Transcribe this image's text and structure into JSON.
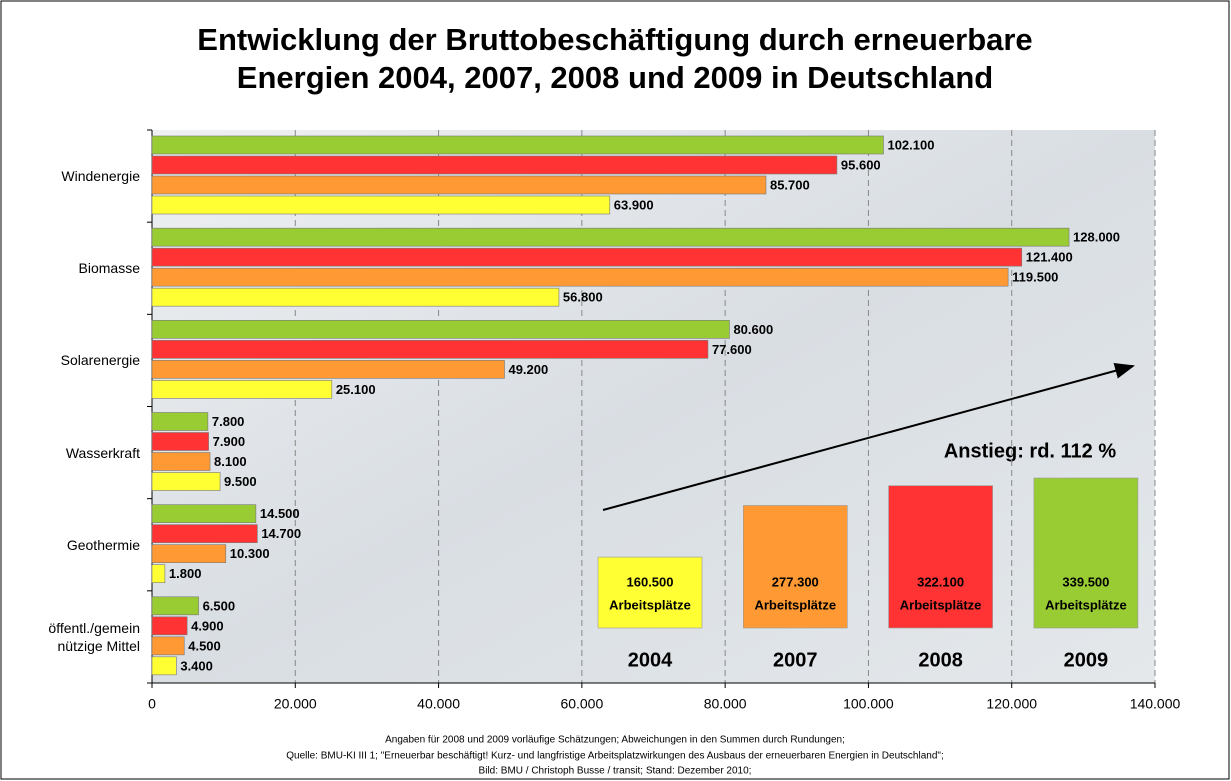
{
  "chart_data": {
    "type": "hbar",
    "title": [
      "Entwicklung der Bruttobeschäftigung durch erneuerbare",
      "Energien 2004, 2007, 2008 und 2009 in Deutschland"
    ],
    "categories": [
      "Windenergie",
      "Biomasse",
      "Solarenergie",
      "Wasserkraft",
      "Geothermie",
      "öffentl./gemein nützige Mittel"
    ],
    "series": [
      {
        "name": "2004",
        "color": "#ffff33",
        "values": [
          63900,
          56800,
          25100,
          9500,
          1800,
          3400
        ],
        "value_labels": [
          "63.900",
          "56.800",
          "25.100",
          "9.500",
          "1.800",
          "3.400"
        ]
      },
      {
        "name": "2007",
        "color": "#ff9933",
        "values": [
          85700,
          119500,
          49200,
          8100,
          10300,
          4500
        ],
        "value_labels": [
          "85.700",
          "119.500",
          "49.200",
          "8.100",
          "10.300",
          "4.500"
        ]
      },
      {
        "name": "2008",
        "color": "#ff3333",
        "values": [
          95600,
          121400,
          77600,
          7900,
          14700,
          4900
        ],
        "value_labels": [
          "95.600",
          "121.400",
          "77.600",
          "7.900",
          "14.700",
          "4.900"
        ]
      },
      {
        "name": "2009",
        "color": "#99cc33",
        "values": [
          102100,
          128000,
          80600,
          7800,
          14500,
          6500
        ],
        "value_labels": [
          "102.100",
          "128.000",
          "80.600",
          "7.800",
          "14.500",
          "6.500"
        ]
      }
    ],
    "xlim": [
      0,
      140000
    ],
    "xticks": [
      0,
      {
        "value": 20000,
        "label": "20.000"
      },
      {
        "value": 40000,
        "label": "40.000"
      },
      {
        "value": 60000,
        "label": "60.000"
      },
      {
        "value": 80000,
        "label": "80.000"
      },
      {
        "value": 100000,
        "label": "100.000"
      },
      {
        "value": 120000,
        "label": "120.000"
      },
      {
        "value": 140000,
        "label": "140.000"
      }
    ],
    "grid": true,
    "totals": {
      "label": "Arbeitsplätze",
      "values": [
        160500,
        277300,
        322100,
        339500
      ],
      "value_labels": [
        "160.500",
        "277.300",
        "322.100",
        "339.500"
      ]
    },
    "annotation": "Anstieg: rd. 112 %",
    "notes": [
      "Angaben für 2008 und 2009 vorläufige Schätzungen; Abweichungen in den Summen durch Rundungen;",
      "Quelle: BMU-KI III 1; \"Erneuerbar beschäftigt! Kurz- und langfristige Arbeitsplatzwirkungen des Ausbaus der erneuerbaren Energien in Deutschland\";",
      "Bild: BMU / Christoph Busse / transit; Stand: Dezember 2010;"
    ]
  }
}
